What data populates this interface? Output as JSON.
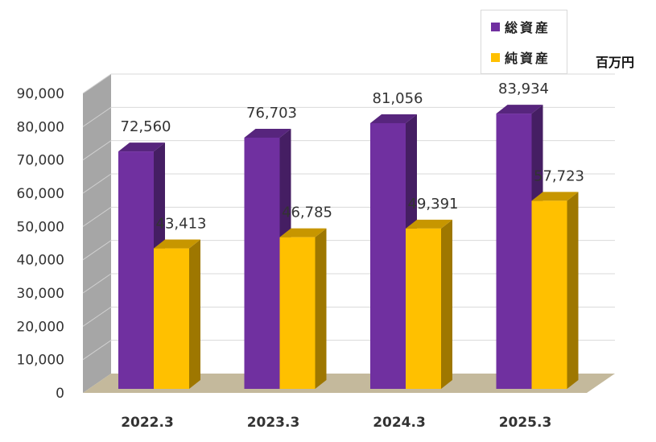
{
  "chart_data": {
    "type": "bar",
    "categories": [
      "2022.3",
      "2023.3",
      "2024.3",
      "2025.3"
    ],
    "series": [
      {
        "name": "総資産",
        "values": [
          72560,
          76703,
          81056,
          83934
        ],
        "labels": [
          "72,560",
          "76,703",
          "81,056",
          "83,934"
        ],
        "color": "#7030a0"
      },
      {
        "name": "純資産",
        "values": [
          43413,
          46785,
          49391,
          57723
        ],
        "labels": [
          "43,413",
          "46,785",
          "49,391",
          "57,723"
        ],
        "color": "#ffc000"
      }
    ],
    "unit_label": "百万円",
    "ylim": [
      0,
      90000
    ],
    "yticks": [
      0,
      10000,
      20000,
      30000,
      40000,
      50000,
      60000,
      70000,
      80000,
      90000
    ],
    "ytick_labels": [
      "0",
      "10,000",
      "20,000",
      "30,000",
      "40,000",
      "50,000",
      "60,000",
      "70,000",
      "80,000",
      "90,000"
    ],
    "grid": true,
    "legend_position": "top-right",
    "wall_color": "#a6a6a6",
    "floor_color": "#c4b99c"
  }
}
